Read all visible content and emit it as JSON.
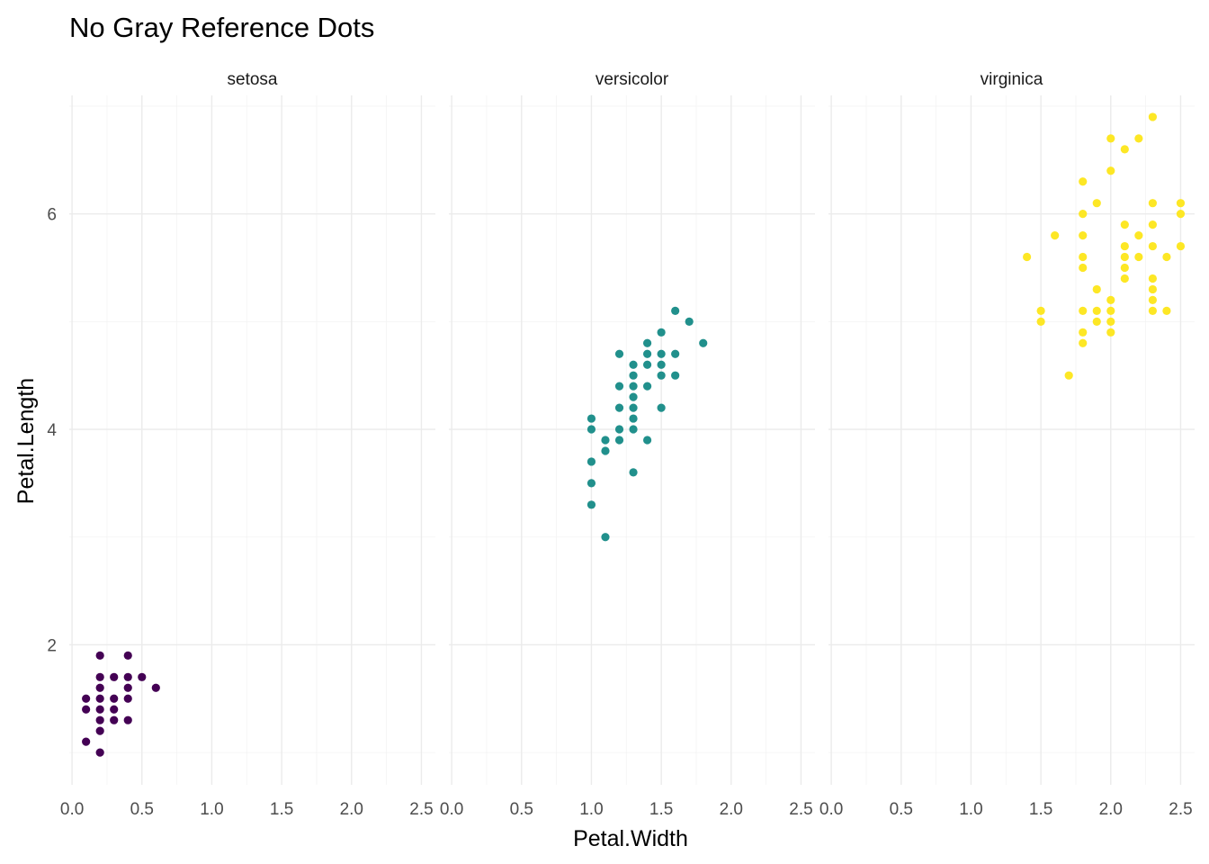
{
  "chart_data": {
    "type": "scatter",
    "title": "No Gray Reference Dots",
    "xlabel": "Petal.Width",
    "ylabel": "Petal.Length",
    "xlim": [
      -0.02,
      2.6
    ],
    "ylim": [
      0.7,
      7.1
    ],
    "x_ticks": [
      0.0,
      0.5,
      1.0,
      1.5,
      2.0,
      2.5
    ],
    "x_tick_labels": [
      "0.0",
      "0.5",
      "1.0",
      "1.5",
      "2.0",
      "2.5"
    ],
    "y_ticks": [
      2,
      4,
      6
    ],
    "y_tick_labels": [
      "2",
      "4",
      "6"
    ],
    "grid": true,
    "legend": "none",
    "facets": [
      {
        "name": "setosa",
        "color": "#440154",
        "points": [
          [
            0.1,
            1.1
          ],
          [
            0.1,
            1.4
          ],
          [
            0.1,
            1.5
          ],
          [
            0.2,
            1.0
          ],
          [
            0.2,
            1.2
          ],
          [
            0.2,
            1.3
          ],
          [
            0.2,
            1.4
          ],
          [
            0.2,
            1.5
          ],
          [
            0.2,
            1.6
          ],
          [
            0.2,
            1.7
          ],
          [
            0.2,
            1.9
          ],
          [
            0.3,
            1.3
          ],
          [
            0.3,
            1.4
          ],
          [
            0.3,
            1.5
          ],
          [
            0.3,
            1.7
          ],
          [
            0.4,
            1.3
          ],
          [
            0.4,
            1.5
          ],
          [
            0.4,
            1.6
          ],
          [
            0.4,
            1.7
          ],
          [
            0.4,
            1.9
          ],
          [
            0.5,
            1.7
          ],
          [
            0.6,
            1.6
          ]
        ]
      },
      {
        "name": "versicolor",
        "color": "#21908C",
        "points": [
          [
            1.0,
            3.3
          ],
          [
            1.0,
            3.5
          ],
          [
            1.0,
            3.7
          ],
          [
            1.0,
            4.0
          ],
          [
            1.0,
            4.1
          ],
          [
            1.1,
            3.0
          ],
          [
            1.1,
            3.8
          ],
          [
            1.1,
            3.9
          ],
          [
            1.2,
            3.9
          ],
          [
            1.2,
            4.0
          ],
          [
            1.2,
            4.2
          ],
          [
            1.2,
            4.4
          ],
          [
            1.2,
            4.7
          ],
          [
            1.3,
            3.6
          ],
          [
            1.3,
            4.0
          ],
          [
            1.3,
            4.1
          ],
          [
            1.3,
            4.2
          ],
          [
            1.3,
            4.3
          ],
          [
            1.3,
            4.4
          ],
          [
            1.3,
            4.5
          ],
          [
            1.3,
            4.6
          ],
          [
            1.4,
            3.9
          ],
          [
            1.4,
            4.4
          ],
          [
            1.4,
            4.6
          ],
          [
            1.4,
            4.7
          ],
          [
            1.4,
            4.8
          ],
          [
            1.5,
            4.2
          ],
          [
            1.5,
            4.5
          ],
          [
            1.5,
            4.6
          ],
          [
            1.5,
            4.7
          ],
          [
            1.5,
            4.9
          ],
          [
            1.6,
            4.5
          ],
          [
            1.6,
            4.7
          ],
          [
            1.6,
            5.1
          ],
          [
            1.7,
            5.0
          ],
          [
            1.8,
            4.8
          ]
        ]
      },
      {
        "name": "virginica",
        "color": "#FDE725",
        "points": [
          [
            1.4,
            5.6
          ],
          [
            1.5,
            5.0
          ],
          [
            1.5,
            5.1
          ],
          [
            1.6,
            5.8
          ],
          [
            1.7,
            4.5
          ],
          [
            1.8,
            4.8
          ],
          [
            1.8,
            4.9
          ],
          [
            1.8,
            5.1
          ],
          [
            1.8,
            5.5
          ],
          [
            1.8,
            5.6
          ],
          [
            1.8,
            5.8
          ],
          [
            1.8,
            6.0
          ],
          [
            1.8,
            6.3
          ],
          [
            1.9,
            5.0
          ],
          [
            1.9,
            5.1
          ],
          [
            1.9,
            5.3
          ],
          [
            1.9,
            6.1
          ],
          [
            2.0,
            4.9
          ],
          [
            2.0,
            5.0
          ],
          [
            2.0,
            5.1
          ],
          [
            2.0,
            5.2
          ],
          [
            2.0,
            6.4
          ],
          [
            2.0,
            6.7
          ],
          [
            2.1,
            5.4
          ],
          [
            2.1,
            5.5
          ],
          [
            2.1,
            5.6
          ],
          [
            2.1,
            5.7
          ],
          [
            2.1,
            5.9
          ],
          [
            2.1,
            6.6
          ],
          [
            2.2,
            5.6
          ],
          [
            2.2,
            5.8
          ],
          [
            2.2,
            6.7
          ],
          [
            2.3,
            5.1
          ],
          [
            2.3,
            5.2
          ],
          [
            2.3,
            5.3
          ],
          [
            2.3,
            5.4
          ],
          [
            2.3,
            5.7
          ],
          [
            2.3,
            5.9
          ],
          [
            2.3,
            6.1
          ],
          [
            2.3,
            6.9
          ],
          [
            2.4,
            5.1
          ],
          [
            2.4,
            5.6
          ],
          [
            2.5,
            5.7
          ],
          [
            2.5,
            6.0
          ],
          [
            2.5,
            6.1
          ]
        ]
      }
    ]
  }
}
